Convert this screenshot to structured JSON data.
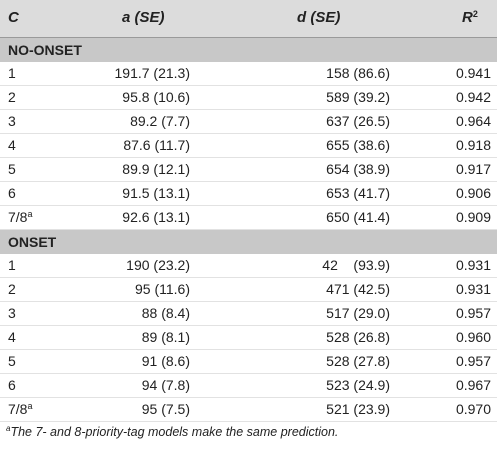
{
  "header": {
    "c": "C",
    "a": "a (SE)",
    "d": "d (SE)",
    "r_base": "R",
    "r_sup": "2"
  },
  "sections": [
    {
      "title": "NO-ONSET",
      "rows": [
        {
          "c": "1",
          "c_sup": "",
          "a": "191.7 (21.3)",
          "d": "158 (86.6)",
          "r2": "0.941"
        },
        {
          "c": "2",
          "c_sup": "",
          "a": "95.8 (10.6)",
          "d": "589 (39.2)",
          "r2": "0.942"
        },
        {
          "c": "3",
          "c_sup": "",
          "a": "89.2 (7.7)",
          "d": "637 (26.5)",
          "r2": "0.964"
        },
        {
          "c": "4",
          "c_sup": "",
          "a": "87.6 (11.7)",
          "d": "655 (38.6)",
          "r2": "0.918"
        },
        {
          "c": "5",
          "c_sup": "",
          "a": "89.9 (12.1)",
          "d": "654 (38.9)",
          "r2": "0.917"
        },
        {
          "c": "6",
          "c_sup": "",
          "a": "91.5 (13.1)",
          "d": "653 (41.7)",
          "r2": "0.906"
        },
        {
          "c": "7/8",
          "c_sup": "a",
          "a": "92.6 (13.1)",
          "d": "650 (41.4)",
          "r2": "0.909"
        }
      ]
    },
    {
      "title": "ONSET",
      "rows": [
        {
          "c": "1",
          "c_sup": "",
          "a": "190 (23.2)",
          "d": "42    (93.9)",
          "r2": "0.931"
        },
        {
          "c": "2",
          "c_sup": "",
          "a": "95 (11.6)",
          "d": "471 (42.5)",
          "r2": "0.931"
        },
        {
          "c": "3",
          "c_sup": "",
          "a": "88 (8.4)",
          "d": "517 (29.0)",
          "r2": "0.957"
        },
        {
          "c": "4",
          "c_sup": "",
          "a": "89 (8.1)",
          "d": "528 (26.8)",
          "r2": "0.960"
        },
        {
          "c": "5",
          "c_sup": "",
          "a": "91 (8.6)",
          "d": "528 (27.8)",
          "r2": "0.957"
        },
        {
          "c": "6",
          "c_sup": "",
          "a": "94 (7.8)",
          "d": "523 (24.9)",
          "r2": "0.967"
        },
        {
          "c": "7/8",
          "c_sup": "a",
          "a": "95 (7.5)",
          "d": "521 (23.9)",
          "r2": "0.970"
        }
      ]
    }
  ],
  "footnote": {
    "marker": "a",
    "text": "The 7- and 8-priority-tag models make the same prediction."
  }
}
